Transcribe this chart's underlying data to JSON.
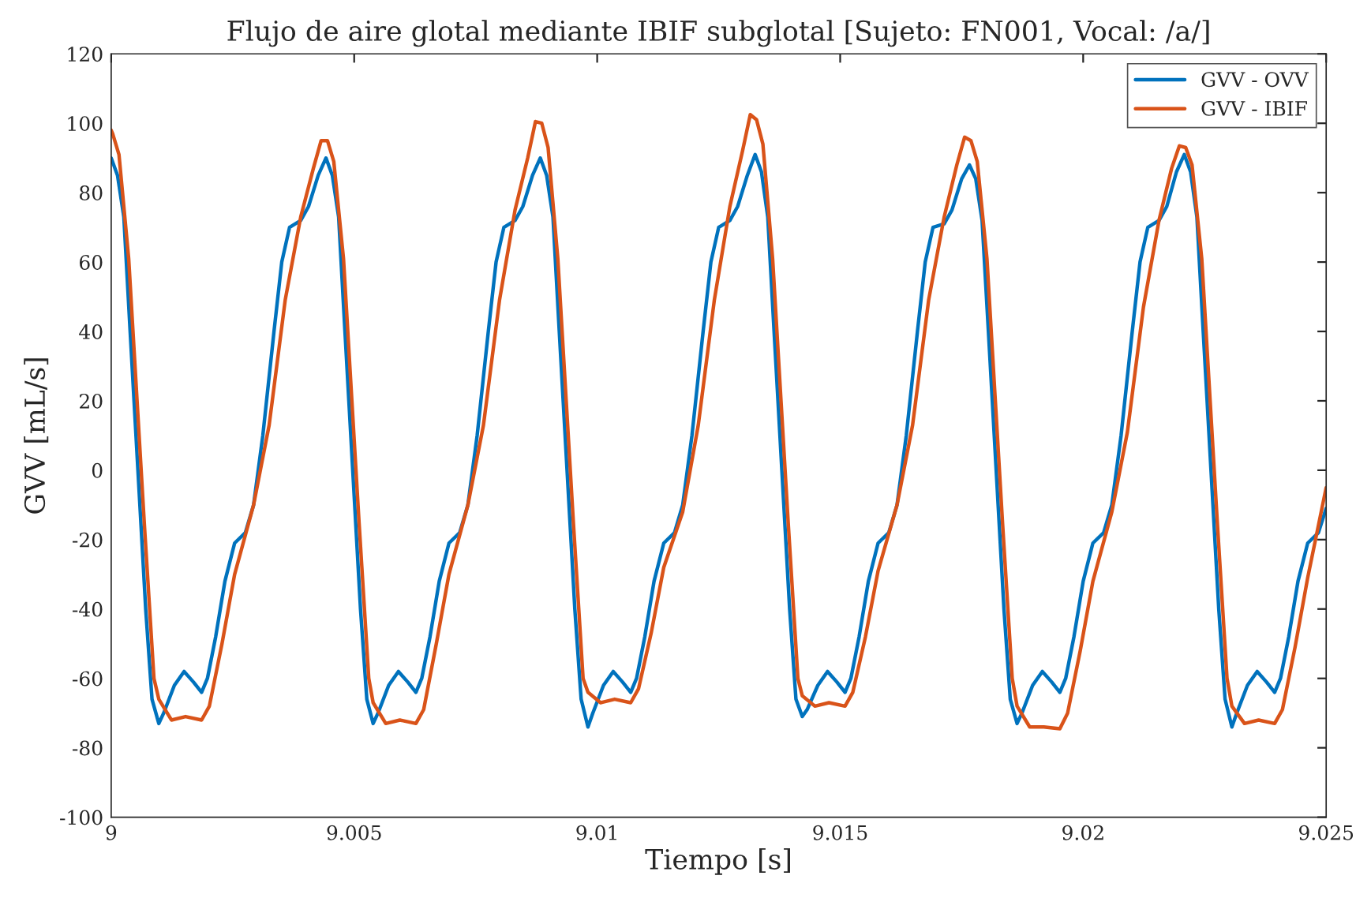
{
  "chart_data": {
    "type": "line",
    "title": "Flujo de aire glotal mediante IBIF subglotal [Sujeto: FN001, Vocal: /a/]",
    "xlabel": "Tiempo [s]",
    "ylabel": "GVV [mL/s]",
    "xlim": [
      9,
      9.025
    ],
    "xticks": [
      9,
      9.005,
      9.01,
      9.015,
      9.02,
      9.025
    ],
    "ylim": [
      -100,
      120
    ],
    "yticks": [
      -100,
      -80,
      -60,
      -40,
      -20,
      0,
      20,
      40,
      60,
      80,
      100,
      120
    ],
    "grid": false,
    "legend": "top right",
    "marker": "none",
    "line_style": "solid",
    "series": [
      {
        "name": "GVV - OVV",
        "color": "#0072bd",
        "x": [
          9.0,
          9.00013,
          9.00026,
          9.00039,
          9.00055,
          9.00071,
          9.00084,
          9.00098,
          9.00108,
          9.0013,
          9.0015,
          9.00169,
          9.00186,
          9.00198,
          9.00215,
          9.00234,
          9.00254,
          9.00276,
          9.00293,
          9.00312,
          9.00335,
          9.00351,
          9.00367,
          9.0039,
          9.00406,
          9.00426,
          9.00442,
          9.00455,
          9.00468,
          9.00481,
          9.00497,
          9.00513,
          9.00526,
          9.00539,
          9.00549,
          9.00571,
          9.00591,
          9.0061,
          9.00627,
          9.00639,
          9.00656,
          9.00675,
          9.00695,
          9.00717,
          9.00734,
          9.00753,
          9.00776,
          9.00792,
          9.00808,
          9.00831,
          9.00847,
          9.00867,
          9.00883,
          9.00896,
          9.00909,
          9.00922,
          9.00938,
          9.00954,
          9.00967,
          9.00981,
          9.00991,
          9.01013,
          9.01033,
          9.01052,
          9.01069,
          9.01081,
          9.01098,
          9.01117,
          9.01137,
          9.01159,
          9.01176,
          9.01195,
          9.01218,
          9.01234,
          9.0125,
          9.01273,
          9.01289,
          9.01309,
          9.01325,
          9.01338,
          9.01351,
          9.01364,
          9.0138,
          9.01396,
          9.01409,
          9.01422,
          9.01432,
          9.01454,
          9.01474,
          9.01493,
          9.0151,
          9.01522,
          9.01539,
          9.01558,
          9.01578,
          9.016,
          9.01617,
          9.01636,
          9.01659,
          9.01675,
          9.01691,
          9.01714,
          9.0173,
          9.0175,
          9.01766,
          9.01779,
          9.01792,
          9.01805,
          9.01821,
          9.01837,
          9.0185,
          9.01864,
          9.01874,
          9.01896,
          9.01916,
          9.01935,
          9.01952,
          9.01964,
          9.01981,
          9.02,
          9.0202,
          9.02042,
          9.02059,
          9.02078,
          9.02101,
          9.02117,
          9.02133,
          9.02156,
          9.02172,
          9.02192,
          9.02208,
          9.02221,
          9.02234,
          9.02247,
          9.02263,
          9.02279,
          9.02292,
          9.02306,
          9.02316,
          9.02338,
          9.02358,
          9.02377,
          9.02394,
          9.02406,
          9.02423,
          9.02442,
          9.02462,
          9.02484,
          9.025
        ],
        "values": [
          90,
          85,
          73,
          40,
          0,
          -40,
          -66,
          -73,
          -70,
          -62,
          -58,
          -61,
          -64,
          -60,
          -48,
          -32,
          -21,
          -18,
          -10,
          10,
          40,
          60,
          70,
          72,
          76,
          85,
          90,
          85,
          73,
          40,
          0,
          -40,
          -66,
          -73,
          -70,
          -62,
          -58,
          -61,
          -64,
          -60,
          -48,
          -32,
          -21,
          -18,
          -10,
          10,
          40,
          60,
          70,
          72,
          76,
          85,
          90,
          85,
          73,
          40,
          0,
          -40,
          -66,
          -74,
          -70,
          -62,
          -58,
          -61,
          -64,
          -60,
          -48,
          -32,
          -21,
          -18,
          -10,
          10,
          40,
          60,
          70,
          72,
          76,
          85,
          91,
          86,
          73,
          40,
          0,
          -40,
          -66,
          -71,
          -69,
          -62,
          -58,
          -61,
          -64,
          -60,
          -48,
          -32,
          -21,
          -18,
          -10,
          10,
          40,
          60,
          70,
          71,
          75,
          84,
          88,
          84,
          72,
          40,
          0,
          -40,
          -66,
          -73,
          -70,
          -62,
          -58,
          -61,
          -64,
          -60,
          -48,
          -32,
          -21,
          -18,
          -10,
          10,
          40,
          60,
          70,
          72,
          76,
          86,
          91,
          86,
          73,
          40,
          0,
          -40,
          -66,
          -74,
          -70,
          -62,
          -58,
          -61,
          -64,
          -60,
          -48,
          -32,
          -21,
          -18,
          -11
        ]
      },
      {
        "name": "GVV - IBIF",
        "color": "#d95319",
        "x": [
          9.0,
          9.00003,
          9.00016,
          9.00036,
          9.00068,
          9.00088,
          9.00098,
          9.00124,
          9.00153,
          9.00186,
          9.00202,
          9.00228,
          9.00254,
          9.00293,
          9.00325,
          9.00358,
          9.0039,
          9.00416,
          9.00432,
          9.00445,
          9.00458,
          9.00478,
          9.0051,
          9.0053,
          9.00539,
          9.00565,
          9.00594,
          9.00627,
          9.00643,
          9.00669,
          9.00695,
          9.00734,
          9.00766,
          9.00799,
          9.00831,
          9.00857,
          9.00873,
          9.00886,
          9.00899,
          9.00919,
          9.00951,
          9.00971,
          9.00981,
          9.01007,
          9.01036,
          9.01069,
          9.01085,
          9.01111,
          9.01137,
          9.01176,
          9.01208,
          9.01241,
          9.01273,
          9.01299,
          9.01315,
          9.01328,
          9.01341,
          9.01361,
          9.01393,
          9.01413,
          9.01422,
          9.01448,
          9.01477,
          9.0151,
          9.01526,
          9.01552,
          9.01578,
          9.01617,
          9.01649,
          9.01682,
          9.01714,
          9.0174,
          9.01756,
          9.01769,
          9.01782,
          9.01802,
          9.01834,
          9.01854,
          9.01864,
          9.0189,
          9.01919,
          9.01952,
          9.01968,
          9.01994,
          9.0202,
          9.02059,
          9.02091,
          9.02124,
          9.02156,
          9.02182,
          9.02198,
          9.02211,
          9.02224,
          9.02244,
          9.02276,
          9.02296,
          9.02306,
          9.02332,
          9.02361,
          9.02394,
          9.0241,
          9.02436,
          9.02462,
          9.025
        ],
        "values": [
          98,
          97,
          91,
          61,
          -15,
          -60,
          -66,
          -72,
          -71,
          -72,
          -68,
          -50,
          -30,
          -10,
          13,
          49,
          73,
          87,
          95,
          95,
          89,
          61,
          -15,
          -60,
          -67,
          -73,
          -72,
          -73,
          -69,
          -50,
          -30,
          -10,
          13,
          49,
          75,
          90,
          100.5,
          100,
          93,
          61,
          -15,
          -60,
          -64,
          -67,
          -66,
          -67,
          -63,
          -47,
          -28,
          -12,
          13,
          49,
          76,
          92,
          102.5,
          101,
          94,
          61,
          -15,
          -60,
          -65,
          -68,
          -67,
          -68,
          -64,
          -48,
          -29,
          -10,
          13,
          49,
          73,
          88,
          96,
          95,
          89,
          61,
          -15,
          -60,
          -68,
          -74,
          -74,
          -74.5,
          -70,
          -52,
          -32,
          -12,
          11,
          47,
          72,
          87,
          93.5,
          93,
          88,
          61,
          -15,
          -60,
          -68,
          -73,
          -72,
          -73,
          -69,
          -51,
          -31,
          -5
        ]
      }
    ]
  }
}
